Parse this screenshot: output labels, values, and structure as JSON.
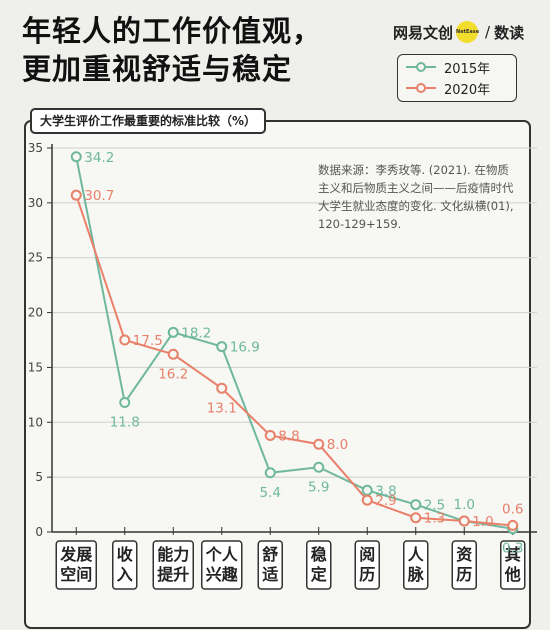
{
  "header": {
    "title_line1": "年轻人的工作价值观，",
    "title_line2": "更加重视舒适与稳定"
  },
  "brand": {
    "name": "网易文创",
    "badge": "NetEase",
    "section": "数读"
  },
  "source_note": "数据来源：李秀玫等. (2021). 在物质主义和后物质主义之间——后疫情时代大学生就业态度的变化. 文化纵横(01), 120-129+159.",
  "colors": {
    "series_2015": "#6fb89d",
    "series_2020": "#e8806a",
    "axis": "#333333",
    "grid": "#d0d0cc"
  },
  "chart_data": {
    "type": "line",
    "title": "大学生评价工作最重要的标准比较（%）",
    "categories": [
      [
        "发展",
        "空间"
      ],
      [
        "收",
        "入"
      ],
      [
        "能力",
        "提升"
      ],
      [
        "个人",
        "兴趣"
      ],
      [
        "舒",
        "适"
      ],
      [
        "稳",
        "定"
      ],
      [
        "阅",
        "历"
      ],
      [
        "人",
        "脉"
      ],
      [
        "资",
        "历"
      ],
      [
        "其",
        "他"
      ]
    ],
    "series": [
      {
        "name": "2015年",
        "values": [
          34.2,
          11.8,
          18.2,
          16.9,
          5.4,
          5.9,
          3.8,
          2.5,
          1.0,
          0.3
        ]
      },
      {
        "name": "2020年",
        "values": [
          30.7,
          17.5,
          16.2,
          13.1,
          8.8,
          8.0,
          2.9,
          1.3,
          1.0,
          0.6
        ]
      }
    ],
    "y_ticks": [
      0,
      5,
      10,
      15,
      20,
      25,
      30,
      35
    ],
    "ylim": [
      0,
      35
    ],
    "grid": true,
    "legend_position": "top-right"
  }
}
